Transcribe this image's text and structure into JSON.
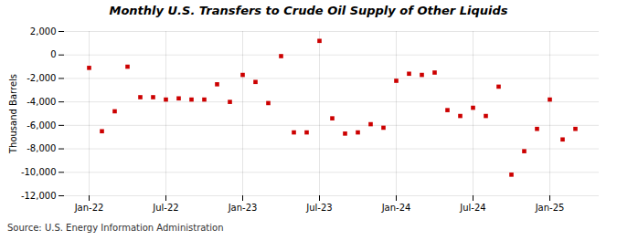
{
  "chart_data": {
    "type": "scatter",
    "title": "Monthly U.S. Transfers to Crude Oil Supply of Other Liquids",
    "ylabel": "Thousand Barrels",
    "source": "Source: U.S. Energy Information Administration",
    "categories": [
      "Jan-22",
      null,
      null,
      null,
      null,
      null,
      "Jul-22",
      null,
      null,
      null,
      null,
      null,
      "Jan-23",
      null,
      null,
      null,
      null,
      null,
      "Jul-23",
      null,
      null,
      null,
      null,
      null,
      "Jan-24",
      null,
      null,
      null,
      null,
      null,
      "Jul-24",
      null,
      null,
      null,
      null,
      null,
      "Jan-25",
      null,
      null
    ],
    "values": [
      -1100,
      -6500,
      -4800,
      -1000,
      -3600,
      -3600,
      -3800,
      -3700,
      -3800,
      -3800,
      -2500,
      -4000,
      -1700,
      -2300,
      -4100,
      -100,
      -6600,
      -6600,
      1200,
      -5400,
      -6700,
      -6600,
      -5900,
      -6200,
      -2200,
      -1600,
      -1700,
      -1500,
      -4700,
      -5200,
      -4500,
      -5200,
      -2700,
      -10200,
      -8200,
      -6300,
      -3800,
      -7200,
      -6300
    ],
    "color": "#cc0000",
    "marker": "square",
    "ylim": [
      -12000,
      2000
    ],
    "yticks": [
      {
        "value": -12000,
        "label": "-12,000"
      },
      {
        "value": -10000,
        "label": "-10,000"
      },
      {
        "value": -8000,
        "label": "-8,000"
      },
      {
        "value": -6000,
        "label": "-6,000"
      },
      {
        "value": -4000,
        "label": "-4,000"
      },
      {
        "value": -2000,
        "label": "-2,000"
      },
      0,
      {
        "value": 2000,
        "label": "2,000"
      }
    ],
    "grid": true
  }
}
